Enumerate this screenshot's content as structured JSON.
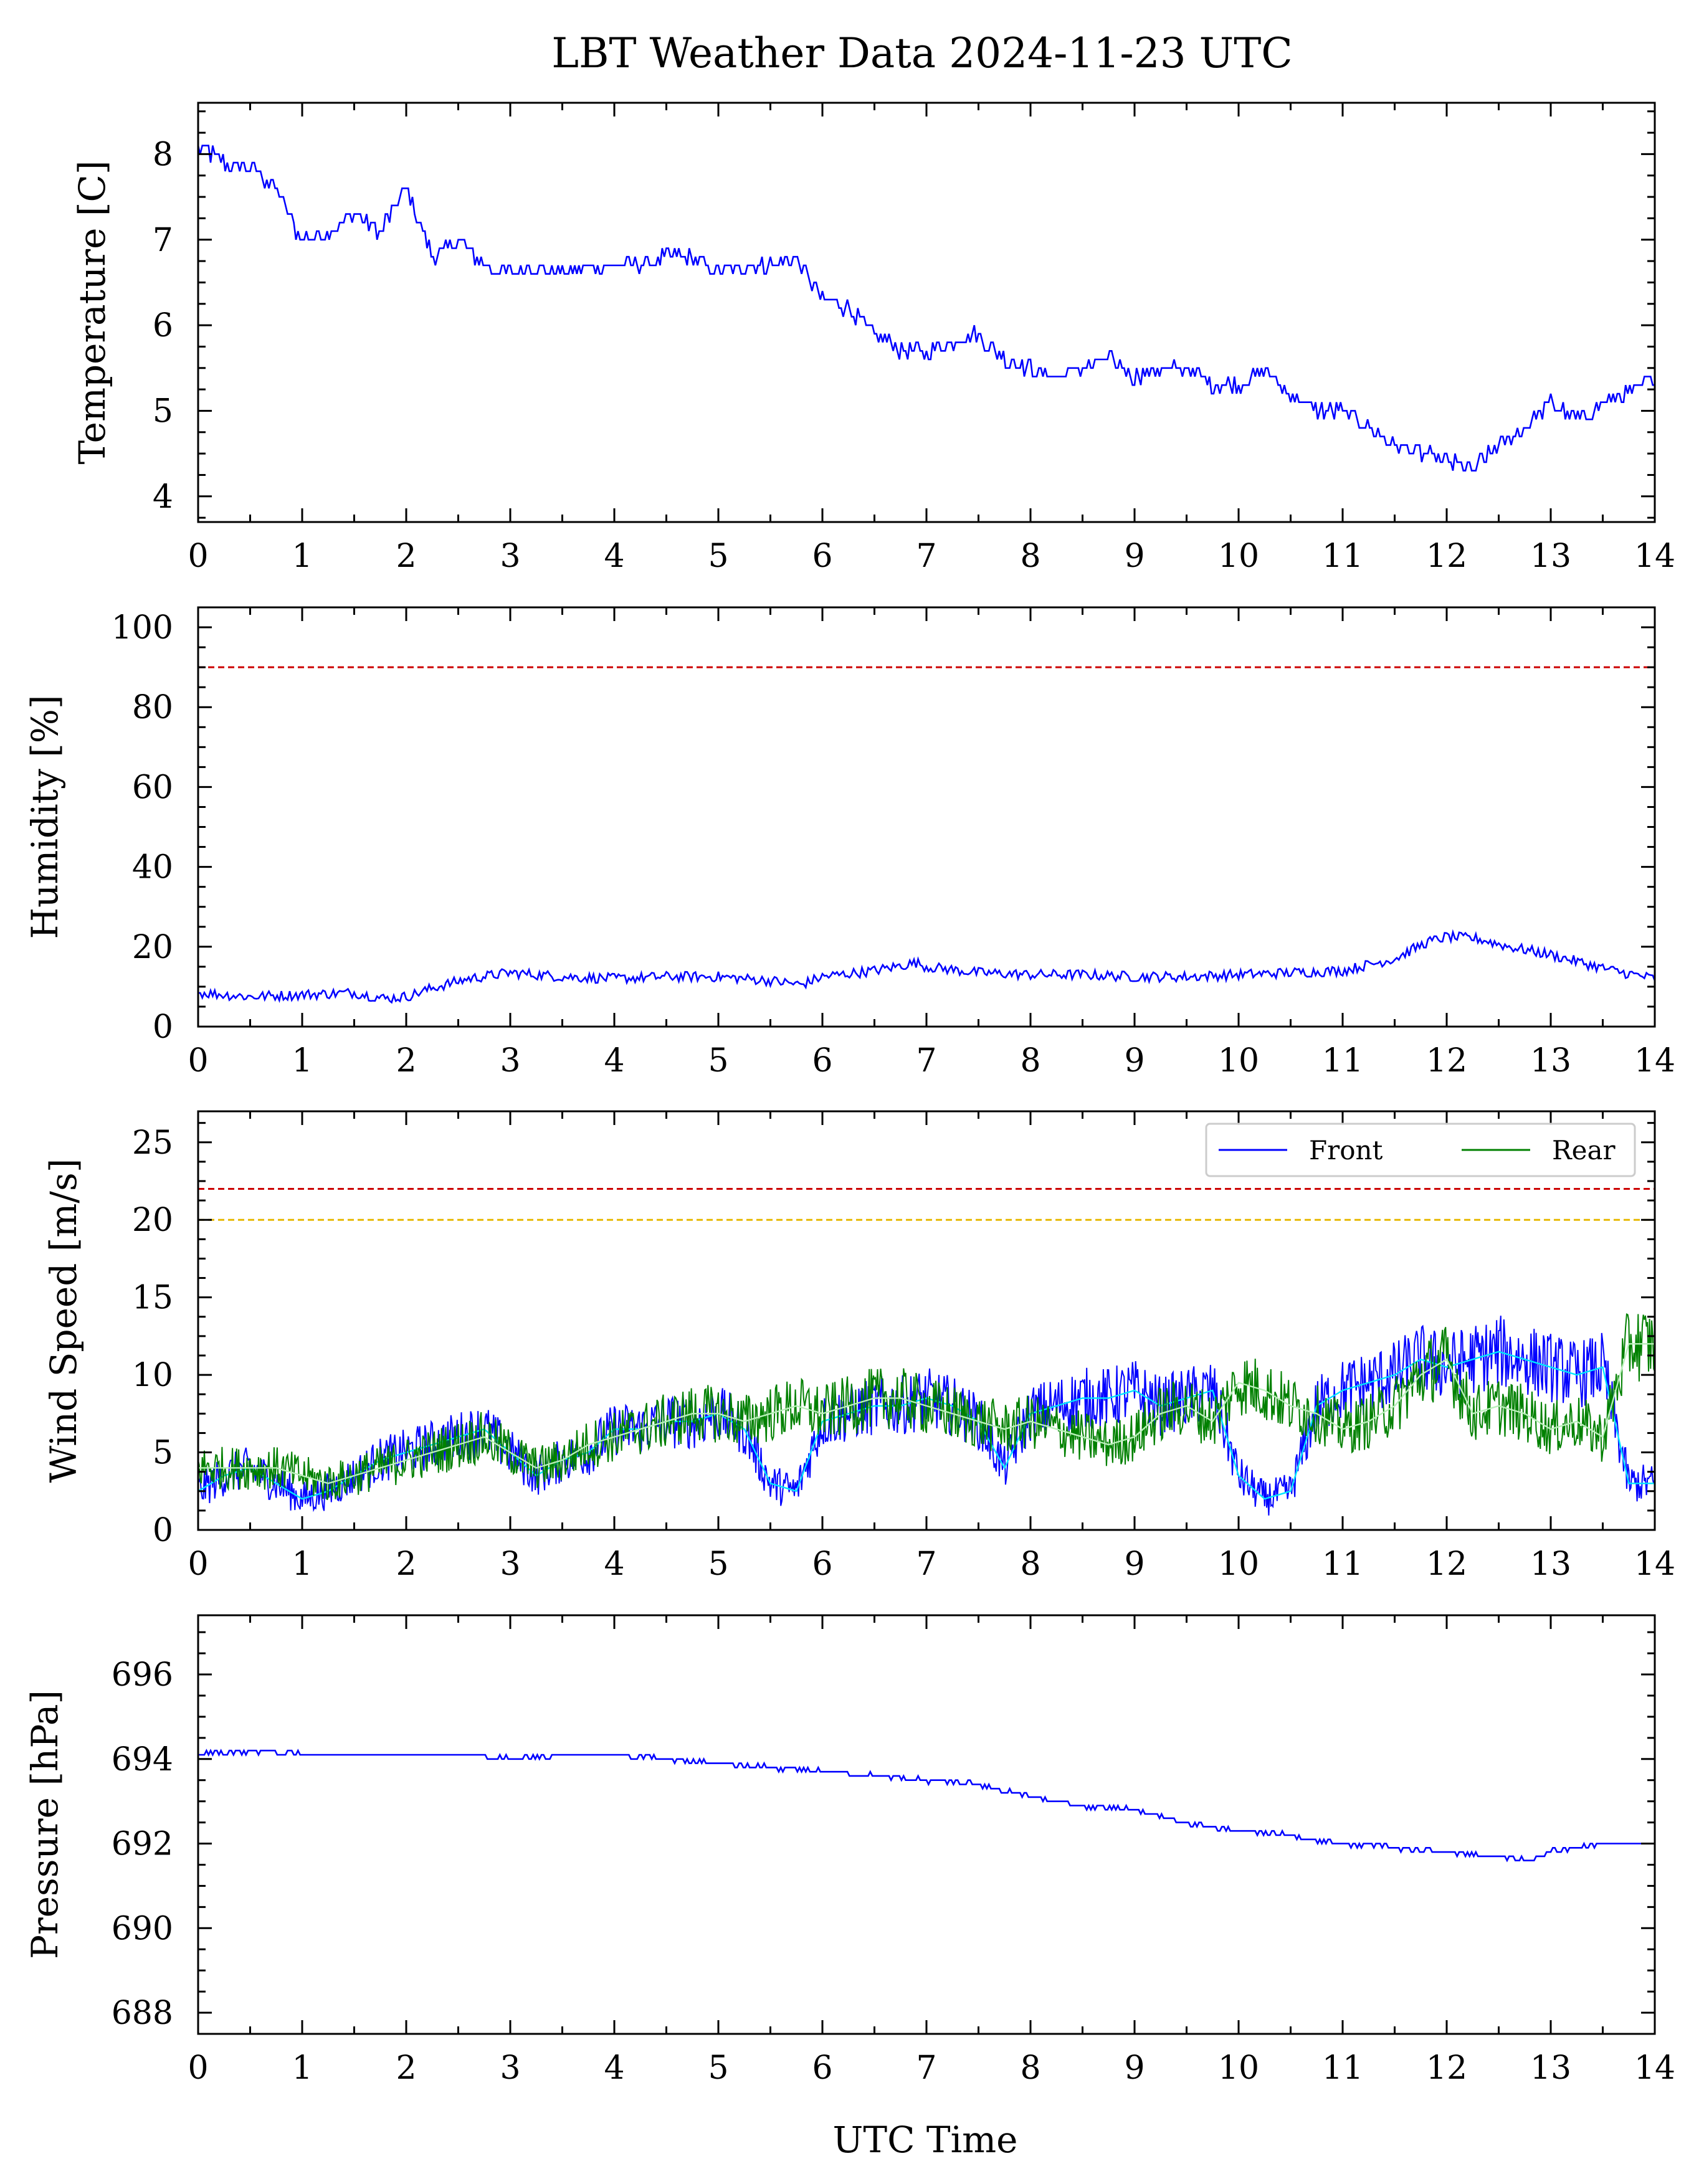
{
  "figure": {
    "title": "LBT Weather Data 2024-11-23 UTC",
    "xlabel": "UTC Time"
  },
  "colors": {
    "front": "#0000ff",
    "rear": "#008000",
    "front_avg": "#00e5ff",
    "rear_avg": "#b8f0b8",
    "red_limit": "#cc0000",
    "yellow_limit": "#e6b800"
  },
  "chart_data": [
    {
      "id": "temperature",
      "type": "line",
      "ylabel": "Temperature [C]",
      "xlim": [
        0,
        14
      ],
      "ylim": [
        3.7,
        8.6
      ],
      "xticks": [
        0,
        1,
        2,
        3,
        4,
        5,
        6,
        7,
        8,
        9,
        10,
        11,
        12,
        13,
        14
      ],
      "yticks": [
        4,
        5,
        6,
        7,
        8
      ],
      "grid": false,
      "series": [
        {
          "color": "#0000ff",
          "x": [
            0,
            0.25,
            0.5,
            0.75,
            0.9,
            1.0,
            1.25,
            1.5,
            1.75,
            2.0,
            2.25,
            2.5,
            2.75,
            3.0,
            3.25,
            3.5,
            3.75,
            4.0,
            4.25,
            4.5,
            4.75,
            5.0,
            5.25,
            5.5,
            5.75,
            6.0,
            6.25,
            6.5,
            6.75,
            7.0,
            7.25,
            7.5,
            7.75,
            8.0,
            8.25,
            8.5,
            8.75,
            9.0,
            9.25,
            9.5,
            9.75,
            10.0,
            10.25,
            10.5,
            10.75,
            11.0,
            11.25,
            11.5,
            11.75,
            12.0,
            12.25,
            12.5,
            12.75,
            13.0,
            13.25,
            13.5,
            13.75,
            14.0
          ],
          "y": [
            8.1,
            7.9,
            7.85,
            7.6,
            7.2,
            7.0,
            7.1,
            7.3,
            7.1,
            7.6,
            6.8,
            7.0,
            6.7,
            6.6,
            6.7,
            6.6,
            6.7,
            6.7,
            6.7,
            6.8,
            6.8,
            6.6,
            6.7,
            6.7,
            6.8,
            6.3,
            6.2,
            5.9,
            5.7,
            5.7,
            5.8,
            5.9,
            5.6,
            5.5,
            5.4,
            5.5,
            5.6,
            5.4,
            5.5,
            5.5,
            5.3,
            5.3,
            5.5,
            5.2,
            5.0,
            5.0,
            4.8,
            4.6,
            4.5,
            4.4,
            4.3,
            4.6,
            4.8,
            5.1,
            4.9,
            5.1,
            5.2,
            5.4
          ]
        }
      ]
    },
    {
      "id": "humidity",
      "type": "line",
      "ylabel": "Humidity [%]",
      "xlim": [
        0,
        14
      ],
      "ylim": [
        0,
        105
      ],
      "xticks": [
        0,
        1,
        2,
        3,
        4,
        5,
        6,
        7,
        8,
        9,
        10,
        11,
        12,
        13,
        14
      ],
      "yticks": [
        0,
        20,
        40,
        60,
        80,
        100
      ],
      "hlines": [
        {
          "y": 90,
          "color": "#cc0000",
          "style": "dashed"
        }
      ],
      "grid": false,
      "series": [
        {
          "color": "#0000ff",
          "x": [
            0,
            0.5,
            1.0,
            1.5,
            1.8,
            2.0,
            2.3,
            2.6,
            3.0,
            3.5,
            4.0,
            4.5,
            5.0,
            5.5,
            5.8,
            6.0,
            6.5,
            6.9,
            7.0,
            7.5,
            8.0,
            8.5,
            9.0,
            9.5,
            10.0,
            10.5,
            11.0,
            11.5,
            11.8,
            12.0,
            12.3,
            12.6,
            13.0,
            13.3,
            13.6,
            14.0
          ],
          "y": [
            8.5,
            7.5,
            8.0,
            8.5,
            7.0,
            7.5,
            10.0,
            12.0,
            13.5,
            12.5,
            12.0,
            12.5,
            12.5,
            11.5,
            10.5,
            12.5,
            14.0,
            16.0,
            15.0,
            13.5,
            13.0,
            13.0,
            12.5,
            12.5,
            13.0,
            13.5,
            14.0,
            17.0,
            21.0,
            22.5,
            22.0,
            20.0,
            18.0,
            16.0,
            14.0,
            12.0
          ]
        }
      ]
    },
    {
      "id": "wind",
      "type": "line",
      "ylabel": "Wind Speed [m/s]",
      "xlim": [
        0,
        14
      ],
      "ylim": [
        0,
        27
      ],
      "xticks": [
        0,
        1,
        2,
        3,
        4,
        5,
        6,
        7,
        8,
        9,
        10,
        11,
        12,
        13,
        14
      ],
      "yticks": [
        0,
        5,
        10,
        15,
        20,
        25
      ],
      "hlines": [
        {
          "y": 22,
          "color": "#cc0000",
          "style": "dashed"
        },
        {
          "y": 20,
          "color": "#e6b800",
          "style": "dashed"
        }
      ],
      "legend": {
        "placement": "top-right"
      },
      "grid": false,
      "series": [
        {
          "name": "Front",
          "color": "#0000ff",
          "x": [
            0,
            0.25,
            0.5,
            0.75,
            1.0,
            1.25,
            1.5,
            1.75,
            2.0,
            2.25,
            2.5,
            2.75,
            3.0,
            3.25,
            3.5,
            3.75,
            4.0,
            4.25,
            4.5,
            4.75,
            5.0,
            5.25,
            5.5,
            5.75,
            6.0,
            6.25,
            6.5,
            6.75,
            7.0,
            7.25,
            7.5,
            7.75,
            8.0,
            8.25,
            8.5,
            8.75,
            9.0,
            9.25,
            9.5,
            9.75,
            10.0,
            10.25,
            10.5,
            10.75,
            11.0,
            11.25,
            11.5,
            11.75,
            12.0,
            12.25,
            12.5,
            12.75,
            13.0,
            13.25,
            13.5,
            13.75,
            14.0
          ],
          "y": [
            2.5,
            3.5,
            4.0,
            3.0,
            2.0,
            2.5,
            3.5,
            4.5,
            5.0,
            5.5,
            6.0,
            6.5,
            5.0,
            3.5,
            4.5,
            5.0,
            6.5,
            6.5,
            7.0,
            7.0,
            7.5,
            6.5,
            3.0,
            2.5,
            7.0,
            7.5,
            8.0,
            8.0,
            8.5,
            8.0,
            7.0,
            4.0,
            7.5,
            8.0,
            8.5,
            8.5,
            9.0,
            8.0,
            8.5,
            9.0,
            3.5,
            2.0,
            2.5,
            8.0,
            9.0,
            9.5,
            10.0,
            11.0,
            10.5,
            11.0,
            11.5,
            11.0,
            10.5,
            10.0,
            10.5,
            3.0,
            3.0
          ]
        },
        {
          "name": "Rear",
          "color": "#008000",
          "x": [
            0,
            0.25,
            0.5,
            0.75,
            1.0,
            1.25,
            1.5,
            1.75,
            2.0,
            2.25,
            2.5,
            2.75,
            3.0,
            3.25,
            3.5,
            3.75,
            4.0,
            4.25,
            4.5,
            4.75,
            5.0,
            5.25,
            5.5,
            5.75,
            6.0,
            6.25,
            6.5,
            6.75,
            7.0,
            7.25,
            7.5,
            7.75,
            8.0,
            8.25,
            8.5,
            8.75,
            9.0,
            9.25,
            9.5,
            9.75,
            10.0,
            10.25,
            10.5,
            10.75,
            11.0,
            11.25,
            11.5,
            11.75,
            12.0,
            12.25,
            12.5,
            12.75,
            13.0,
            13.25,
            13.5,
            13.75,
            14.0
          ],
          "y": [
            4.0,
            4.0,
            4.0,
            4.0,
            3.5,
            3.0,
            3.5,
            4.0,
            4.5,
            5.0,
            5.5,
            6.0,
            5.0,
            4.0,
            4.5,
            5.5,
            6.0,
            6.5,
            7.0,
            7.5,
            7.5,
            7.0,
            7.5,
            8.0,
            7.5,
            8.0,
            8.5,
            8.5,
            8.0,
            7.5,
            7.0,
            6.5,
            7.0,
            6.5,
            6.0,
            5.5,
            6.0,
            7.5,
            8.0,
            7.0,
            9.5,
            9.0,
            8.0,
            7.5,
            6.5,
            7.0,
            8.0,
            10.0,
            11.0,
            7.5,
            8.0,
            7.5,
            6.5,
            7.0,
            6.0,
            12.0,
            12.0
          ]
        }
      ]
    },
    {
      "id": "pressure",
      "type": "line",
      "ylabel": "Pressure [hPa]",
      "xlabel": "UTC Time",
      "xlim": [
        0,
        14
      ],
      "ylim": [
        687.5,
        697.4
      ],
      "xticks": [
        0,
        1,
        2,
        3,
        4,
        5,
        6,
        7,
        8,
        9,
        10,
        11,
        12,
        13,
        14
      ],
      "yticks": [
        688,
        690,
        692,
        694,
        696
      ],
      "grid": false,
      "series": [
        {
          "color": "#0000ff",
          "x": [
            0,
            0.5,
            1.0,
            1.5,
            2.0,
            2.5,
            3.0,
            3.5,
            4.0,
            4.5,
            5.0,
            5.5,
            6.0,
            6.5,
            7.0,
            7.5,
            8.0,
            8.5,
            9.0,
            9.5,
            10.0,
            10.5,
            11.0,
            11.5,
            12.0,
            12.5,
            12.8,
            13.0,
            13.5,
            14.0
          ],
          "y": [
            694.1,
            694.2,
            694.1,
            694.1,
            694.1,
            694.1,
            694.0,
            694.1,
            694.1,
            694.0,
            693.9,
            693.8,
            693.7,
            693.6,
            693.5,
            693.4,
            693.1,
            692.9,
            692.8,
            692.5,
            692.3,
            692.2,
            692.0,
            691.9,
            691.8,
            691.7,
            691.6,
            691.8,
            692.0,
            692.0
          ]
        }
      ]
    }
  ]
}
